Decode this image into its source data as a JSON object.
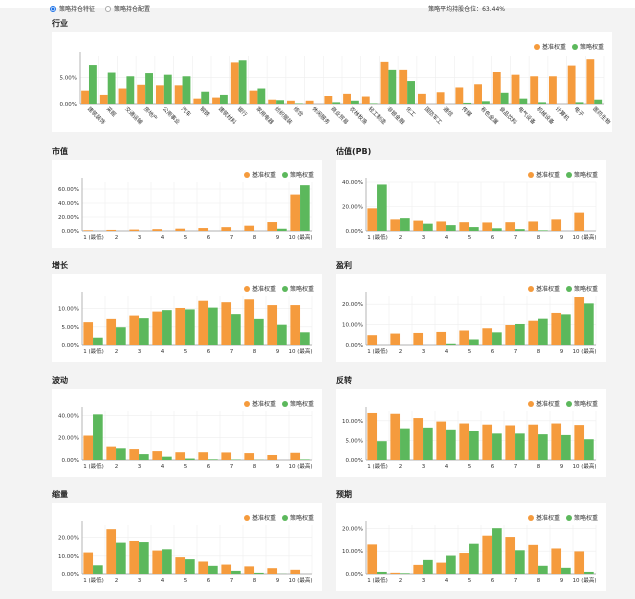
{
  "header": {
    "radio_options": [
      {
        "label": "策略持仓特征",
        "selected": true
      },
      {
        "label": "策略持仓配置",
        "selected": false
      }
    ],
    "avg_position_label": "策略平均持股仓位：63.44%"
  },
  "legend": {
    "base": "基准权重",
    "strategy": "策略权重"
  },
  "colors": {
    "base": "#f59b3d",
    "strategy": "#5cb85c"
  },
  "chart_data": [
    {
      "id": "industry",
      "title": "行业",
      "type": "bar",
      "categories": [
        "建筑装饰",
        "采掘",
        "交通运输",
        "房地产",
        "公用事业",
        "汽车",
        "钢铁",
        "建筑材料",
        "银行",
        "家用电器",
        "纺织服装",
        "综合",
        "休闲服务",
        "商业贸易",
        "农林牧渔",
        "轻工制造",
        "非银金融",
        "化工",
        "国防军工",
        "通信",
        "传媒",
        "有色金属",
        "食品饮料",
        "电气设备",
        "机械设备",
        "计算机",
        "电子",
        "医药生物"
      ],
      "series": [
        {
          "name": "基准权重",
          "values": [
            2.5,
            1.7,
            2.9,
            3.6,
            3.5,
            3.5,
            1.0,
            1.2,
            7.8,
            2.5,
            0.8,
            0.6,
            0.6,
            1.5,
            1.9,
            1.4,
            7.9,
            6.4,
            1.9,
            2.2,
            3.1,
            3.7,
            6.0,
            5.5,
            5.2,
            5.2,
            7.2,
            8.4
          ]
        },
        {
          "name": "策略权重",
          "values": [
            7.3,
            5.9,
            5.2,
            5.8,
            5.5,
            5.2,
            2.3,
            1.7,
            8.2,
            2.9,
            0.7,
            0.1,
            0.0,
            0.3,
            0.6,
            0.1,
            6.4,
            4.3,
            0.0,
            0.0,
            0.2,
            0.5,
            2.1,
            1.0,
            0.3,
            0.0,
            0.3,
            0.8
          ]
        }
      ],
      "yticks": [
        "0.00%",
        "5.00%"
      ],
      "ylim": [
        0,
        9
      ],
      "ytick_values": [
        0,
        5
      ]
    },
    {
      "id": "size",
      "title": "市值",
      "type": "bar",
      "categories": [
        "1 (最低)",
        "2",
        "3",
        "4",
        "5",
        "6",
        "7",
        "8",
        "9",
        "10 (最高)"
      ],
      "series": [
        {
          "name": "基准权重",
          "values": [
            1.0,
            1.5,
            2.0,
            2.6,
            3.3,
            4.2,
            5.5,
            7.6,
            12.8,
            52.0
          ]
        },
        {
          "name": "策略权重",
          "values": [
            0,
            0,
            0,
            0,
            0,
            0,
            0,
            0,
            3.2,
            65.5
          ]
        }
      ],
      "yticks": [
        "0.00%",
        "20.00%",
        "40.00%",
        "60.00%"
      ],
      "ytick_values": [
        0,
        20,
        40,
        60
      ],
      "ylim": [
        0,
        70
      ]
    },
    {
      "id": "valuation",
      "title": "估值(PB)",
      "type": "bar",
      "categories": [
        "1 (最低)",
        "2",
        "3",
        "4",
        "5",
        "6",
        "7",
        "8",
        "9",
        "10 (最高)"
      ],
      "series": [
        {
          "name": "基准权重",
          "values": [
            18.5,
            9.5,
            8.5,
            7.8,
            7.2,
            7.0,
            7.2,
            7.8,
            9.5,
            15.0
          ]
        },
        {
          "name": "策略权重",
          "values": [
            38.0,
            10.5,
            6.0,
            4.8,
            3.2,
            2.2,
            1.5,
            0.5,
            0,
            0
          ]
        }
      ],
      "yticks": [
        "0.00%",
        "20.00%",
        "40.00%"
      ],
      "ytick_values": [
        0,
        20,
        40
      ],
      "ylim": [
        0,
        40
      ]
    },
    {
      "id": "growth",
      "title": "增长",
      "type": "bar",
      "categories": [
        "1 (最低)",
        "2",
        "3",
        "4",
        "5",
        "6",
        "7",
        "8",
        "9",
        "10 (最高)"
      ],
      "series": [
        {
          "name": "基准权重",
          "values": [
            6.3,
            7.2,
            8.1,
            9.2,
            10.2,
            12.2,
            11.8,
            12.6,
            11.0,
            11.0
          ]
        },
        {
          "name": "策略权重",
          "values": [
            2.0,
            4.9,
            7.4,
            9.6,
            9.8,
            10.3,
            8.5,
            7.2,
            5.6,
            3.5
          ]
        }
      ],
      "yticks": [
        "0.00%",
        "5.00%",
        "10.00%"
      ],
      "ytick_values": [
        0,
        5,
        10
      ],
      "ylim": [
        0,
        13.5
      ]
    },
    {
      "id": "profitability",
      "title": "盈利",
      "type": "bar",
      "categories": [
        "1 (最低)",
        "2",
        "3",
        "4",
        "5",
        "6",
        "7",
        "8",
        "9",
        "10 (最高)"
      ],
      "series": [
        {
          "name": "基准权重",
          "values": [
            4.8,
            5.6,
            5.9,
            6.4,
            7.1,
            8.2,
            9.8,
            11.9,
            15.7,
            23.5
          ]
        },
        {
          "name": "策略权重",
          "values": [
            0,
            0,
            0,
            0.6,
            2.7,
            6.2,
            10.3,
            12.9,
            15.0,
            20.4
          ]
        }
      ],
      "yticks": [
        "0.00%",
        "10.00%",
        "20.00%"
      ],
      "ytick_values": [
        0,
        10,
        20
      ],
      "ylim": [
        0,
        24
      ]
    },
    {
      "id": "volatility",
      "title": "波动",
      "type": "bar",
      "categories": [
        "1 (最低)",
        "2",
        "3",
        "4",
        "5",
        "6",
        "7",
        "8",
        "9",
        "10 (最高)"
      ],
      "series": [
        {
          "name": "基准权重",
          "values": [
            22.0,
            12.0,
            9.8,
            8.0,
            7.0,
            7.0,
            6.8,
            6.2,
            4.5,
            6.5
          ]
        },
        {
          "name": "策略权重",
          "values": [
            41.0,
            10.5,
            5.3,
            3.0,
            1.3,
            0.6,
            0.4,
            0.2,
            0,
            0.5
          ]
        }
      ],
      "yticks": [
        "0.00%",
        "20.00%",
        "40.00%"
      ],
      "ytick_values": [
        0,
        20,
        40
      ],
      "ylim": [
        0,
        44
      ]
    },
    {
      "id": "reversal",
      "title": "反转",
      "type": "bar",
      "categories": [
        "1 (最低)",
        "2",
        "3",
        "4",
        "5",
        "6",
        "7",
        "8",
        "9",
        "10 (最高)"
      ],
      "series": [
        {
          "name": "基准权重",
          "values": [
            12.0,
            11.8,
            10.7,
            9.8,
            9.3,
            9.0,
            8.8,
            9.0,
            9.3,
            8.9
          ]
        },
        {
          "name": "策略权重",
          "values": [
            4.8,
            8.0,
            8.2,
            7.7,
            7.4,
            6.8,
            6.8,
            6.6,
            6.4,
            5.3
          ]
        }
      ],
      "yticks": [
        "0.00%",
        "5.00%",
        "10.00%"
      ],
      "ytick_values": [
        0,
        5,
        10
      ],
      "ylim": [
        0,
        12.5
      ]
    },
    {
      "id": "liquidity",
      "title": "缩量",
      "type": "bar",
      "categories": [
        "1 (最低)",
        "2",
        "3",
        "4",
        "5",
        "6",
        "7",
        "8",
        "9",
        "10 (最高)"
      ],
      "series": [
        {
          "name": "基准权重",
          "values": [
            11.8,
            24.7,
            18.2,
            12.9,
            9.3,
            6.9,
            5.2,
            4.2,
            3.2,
            2.3
          ]
        },
        {
          "name": "策略权重",
          "values": [
            4.8,
            17.3,
            17.6,
            13.6,
            8.2,
            4.5,
            1.7,
            0.6,
            0.1,
            0
          ]
        }
      ],
      "yticks": [
        "0.00%",
        "10.00%",
        "20.00%"
      ],
      "ytick_values": [
        0,
        10,
        20
      ],
      "ylim": [
        0,
        27
      ]
    },
    {
      "id": "expectation",
      "title": "预期",
      "type": "bar",
      "categories": [
        "1 (最低)",
        "2",
        "3",
        "4",
        "5",
        "6",
        "7",
        "8",
        "9",
        "10 (最高)"
      ],
      "series": [
        {
          "name": "基准权重",
          "values": [
            13.0,
            0.5,
            4.0,
            5.0,
            9.2,
            16.8,
            16.2,
            12.8,
            11.2,
            9.9
          ]
        },
        {
          "name": "策略权重",
          "values": [
            0.9,
            0.3,
            6.2,
            8.1,
            13.3,
            20.1,
            10.4,
            3.6,
            2.7,
            0.9
          ]
        }
      ],
      "yticks": [
        "0.00%",
        "10.00%",
        "20.00%"
      ],
      "ytick_values": [
        0,
        10,
        20
      ],
      "ylim": [
        0,
        21.5
      ]
    }
  ]
}
